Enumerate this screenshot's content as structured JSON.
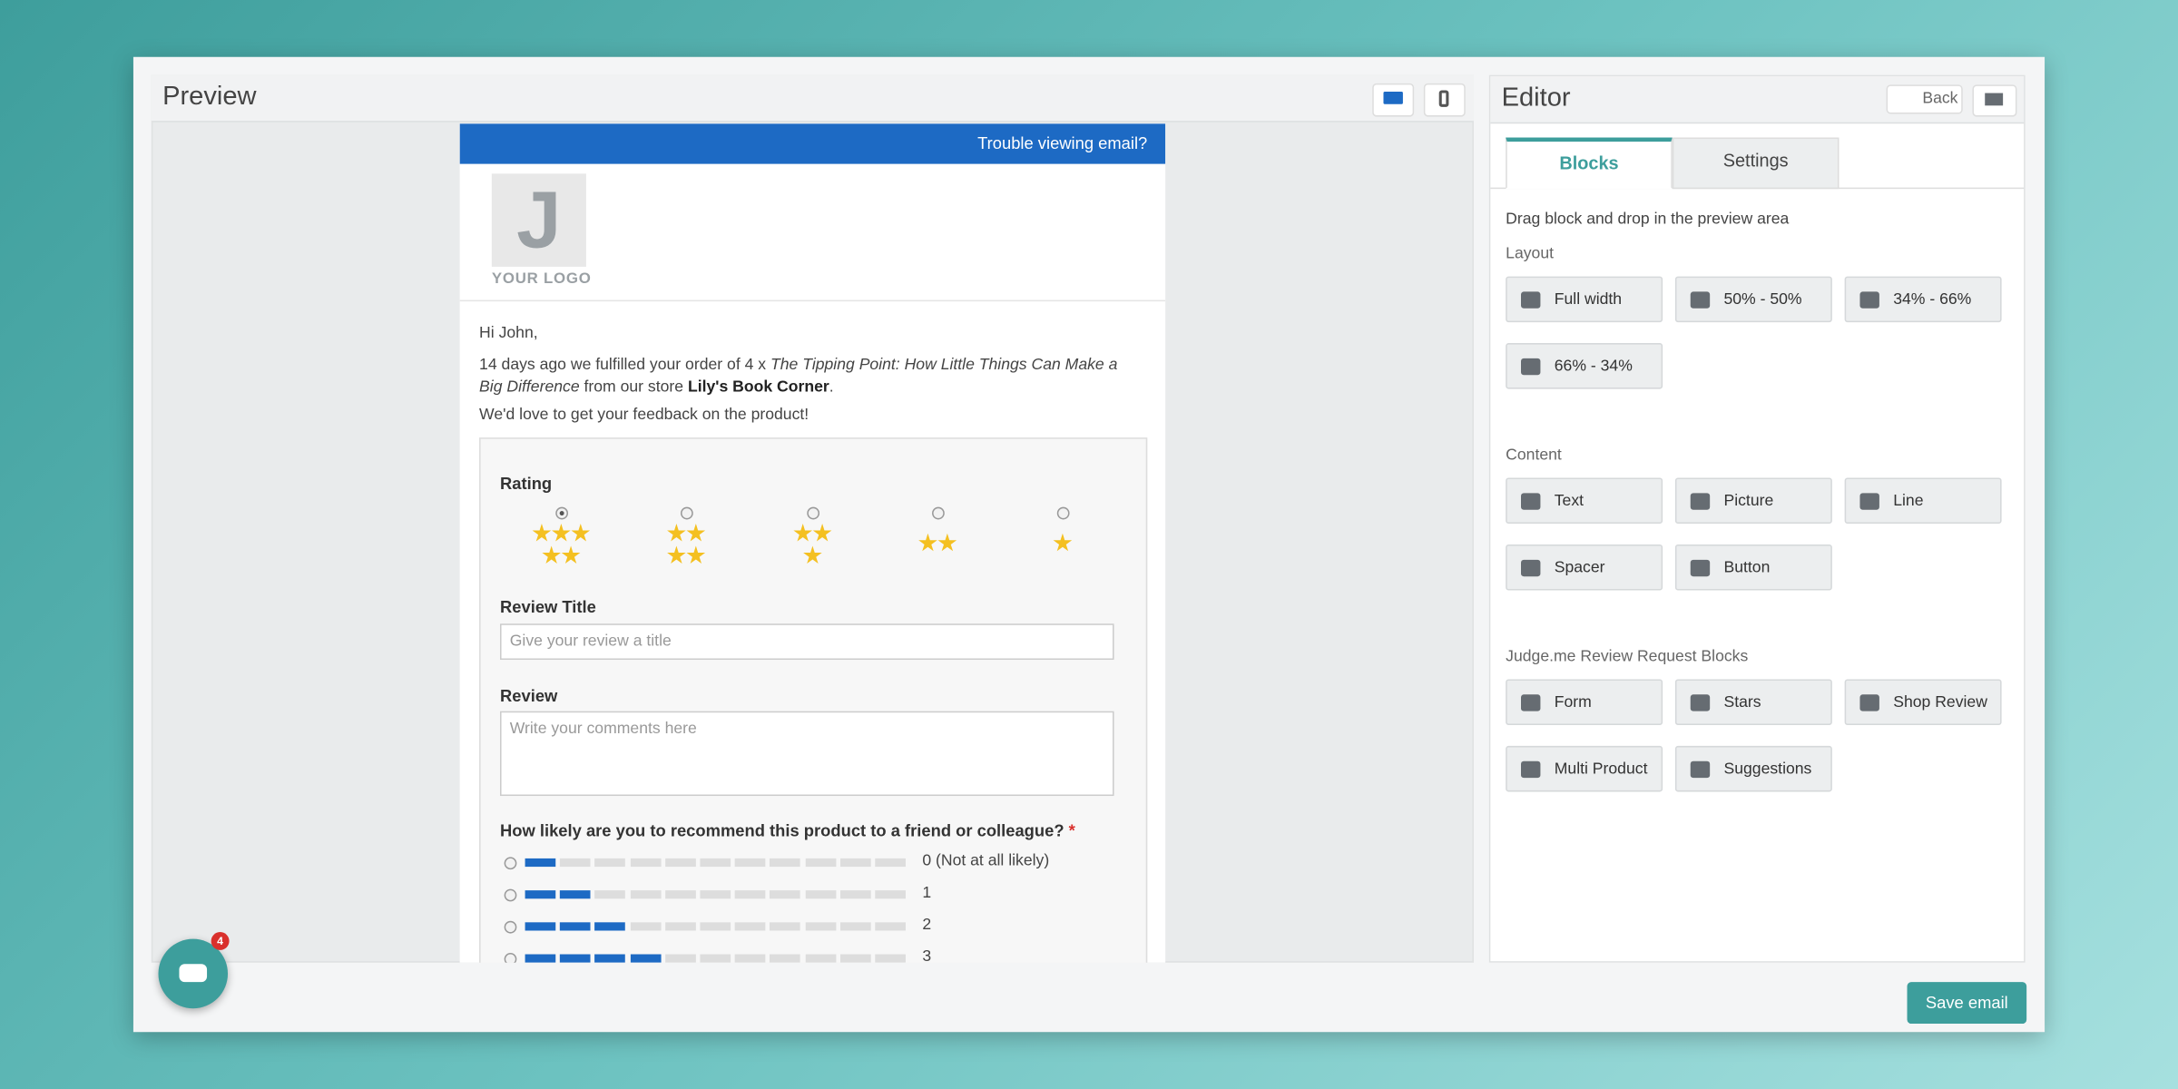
{
  "preview": {
    "title": "Preview"
  },
  "email": {
    "trouble": "Trouble viewing email?",
    "logo_letter": "J",
    "logo_text": "YOUR LOGO",
    "greeting": "Hi John,",
    "order": {
      "before": "14 days ago we fulfilled your order of 4 x ",
      "product": "The Tipping Point: How Little Things Can Make a Big Difference",
      "middle": " from our store ",
      "store": "Lily's Book Corner",
      "end": "."
    },
    "feedback": "We'd love to get your feedback on the product!",
    "form": {
      "rating_label": "Rating",
      "ratings": [
        5,
        4,
        3,
        2,
        1
      ],
      "review_title_label": "Review Title",
      "review_title_placeholder": "Give your review a title",
      "review_label": "Review",
      "review_placeholder": "Write your comments here",
      "nps_question": "How likely are you to recommend this product to a friend or colleague?",
      "required": "*",
      "nps_segments": 11,
      "nps_options": [
        {
          "label": "0 (Not at all likely)",
          "filled": 1
        },
        {
          "label": "1",
          "filled": 2
        },
        {
          "label": "2",
          "filled": 3
        },
        {
          "label": "3",
          "filled": 4
        }
      ]
    }
  },
  "chat": {
    "badge": "4"
  },
  "editor": {
    "title": "Editor",
    "back": "Back",
    "tabs": [
      "Blocks",
      "Settings"
    ],
    "hint": "Drag block and drop in the preview area",
    "sections": [
      {
        "title": "Layout",
        "blocks": [
          "Full width",
          "50% - 50%",
          "34% - 66%",
          "66% - 34%"
        ]
      },
      {
        "title": "Content",
        "blocks": [
          "Text",
          "Picture",
          "Line",
          "Spacer",
          "Button"
        ]
      },
      {
        "title": "Judge.me Review Request Blocks",
        "blocks": [
          "Form",
          "Stars",
          "Shop Review",
          "Multi Product",
          "Suggestions"
        ]
      }
    ]
  },
  "save": "Save email"
}
